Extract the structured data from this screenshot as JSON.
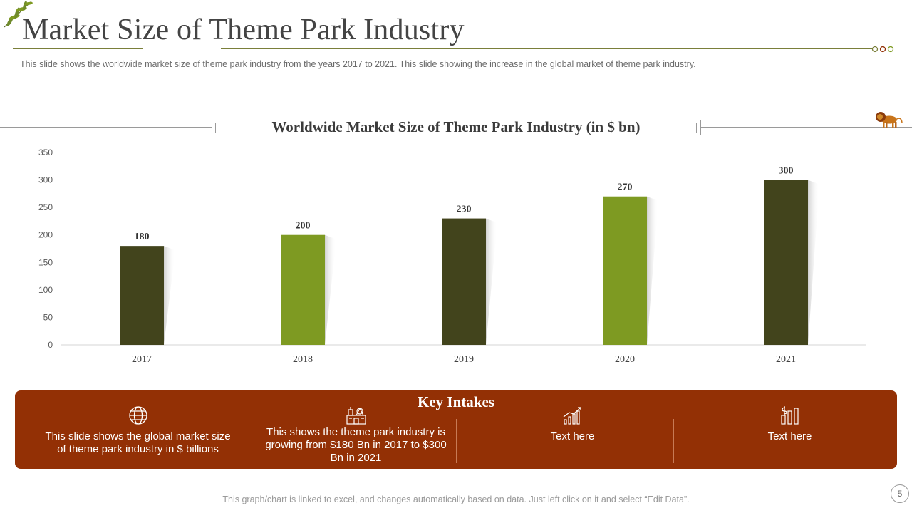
{
  "slide": {
    "title": "Market Size of Theme Park Industry",
    "subtitle": "This slide shows the worldwide  market size of theme park industry from the years 2017 to 2021. This slide showing the increase in the global market of theme park industry.",
    "footer": "This graph/chart is linked to excel, and changes automatically based on data. Just left click on it and select “Edit Data”.",
    "page_number": "5"
  },
  "colors": {
    "dark_olive": "#42441c",
    "light_olive": "#7e9a22",
    "rust": "#933005",
    "rule": "#7a7f3a"
  },
  "chart_data": {
    "type": "bar",
    "title": "Worldwide Market Size of Theme Park Industry (in $ bn)",
    "categories": [
      "2017",
      "2018",
      "2019",
      "2020",
      "2021"
    ],
    "values": [
      180,
      200,
      230,
      270,
      300
    ],
    "data_labels": [
      "180",
      "200",
      "230",
      "270",
      "300"
    ],
    "bar_colors": [
      "#42441c",
      "#7e9a22",
      "#42441c",
      "#7e9a22",
      "#42441c"
    ],
    "ylim": [
      0,
      350
    ],
    "yticks": [
      0,
      50,
      100,
      150,
      200,
      250,
      300,
      350
    ],
    "xlabel": "",
    "ylabel": ""
  },
  "key_intakes": {
    "title": "Key Intakes",
    "items": [
      {
        "icon": "globe-icon",
        "text": "This slide shows the global market size of theme park industry in $ billions"
      },
      {
        "icon": "theme-park-icon",
        "text": "This shows the theme park industry is growing from $180 Bn in 2017 to $300 Bn in 2021"
      },
      {
        "icon": "growth-chart-icon",
        "text": "Text here"
      },
      {
        "icon": "money-bars-icon",
        "text": "Text here"
      }
    ]
  }
}
